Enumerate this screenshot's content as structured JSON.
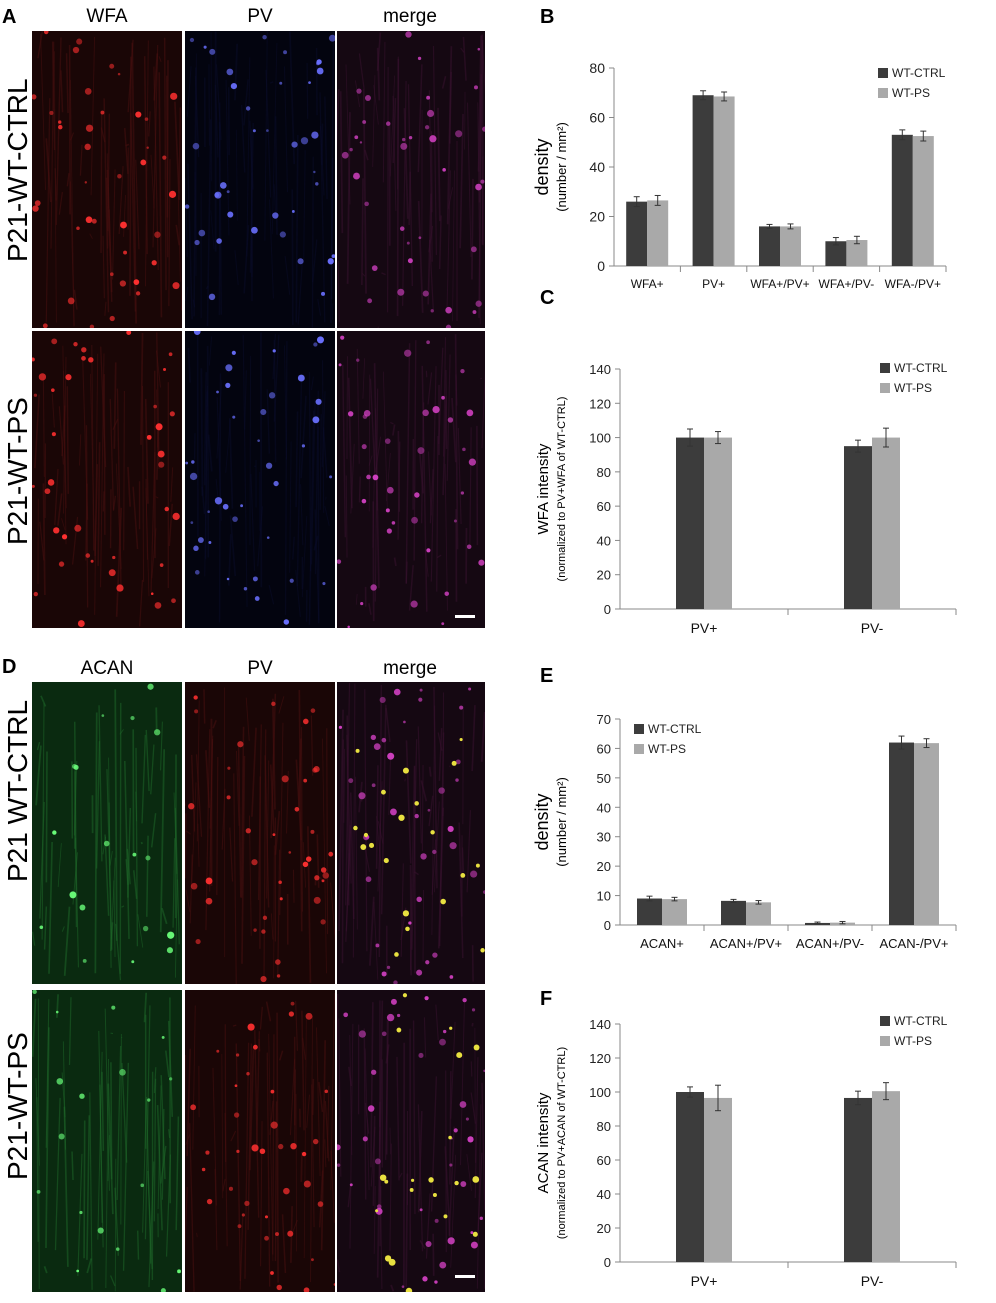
{
  "panels": {
    "A": {
      "letter": "A",
      "columns": [
        "WFA",
        "PV",
        "merge"
      ],
      "rows": [
        "P21-WT-CTRL",
        "P21-WT-PS"
      ],
      "stains": [
        "red",
        "blue",
        "merge"
      ]
    },
    "D": {
      "letter": "D",
      "columns": [
        "ACAN",
        "PV",
        "merge"
      ],
      "rows": [
        "P21 WT-CTRL",
        "P21-WT-PS"
      ],
      "stains": [
        "green",
        "red",
        "merge"
      ]
    }
  },
  "colors": {
    "ctrl": "#3c3c3c",
    "ps": "#a9a9a9",
    "axis": "#888888"
  },
  "chart_data": [
    {
      "panel": "B",
      "type": "bar",
      "categories": [
        "WFA+",
        "PV+",
        "WFA+/PV+",
        "WFA+/PV-",
        "WFA-/PV+"
      ],
      "series": [
        {
          "name": "WT-CTRL",
          "values": [
            26,
            69,
            16,
            10,
            53
          ],
          "errors": [
            2,
            1.8,
            0.8,
            1.5,
            2
          ]
        },
        {
          "name": "WT-PS",
          "values": [
            26.5,
            68.5,
            16,
            10.5,
            52.5
          ],
          "errors": [
            2,
            1.8,
            1,
            1.5,
            2
          ]
        }
      ],
      "ylabel_main": "density",
      "ylabel_sub": "(number / mm²)",
      "ylim": [
        0,
        80
      ],
      "yticks": [
        0,
        20,
        40,
        60,
        80
      ],
      "legend": "top-right",
      "grid": false
    },
    {
      "panel": "C",
      "type": "bar",
      "categories": [
        "PV+",
        "PV-"
      ],
      "series": [
        {
          "name": "WT-CTRL",
          "values": [
            100,
            95
          ],
          "errors": [
            5,
            3.5
          ]
        },
        {
          "name": "WT-PS",
          "values": [
            100,
            100
          ],
          "errors": [
            3.5,
            5.5
          ]
        }
      ],
      "ylabel_main": "WFA intensity",
      "ylabel_sub": "(normalized to PV+WFA of WT-CTRL)",
      "ylim": [
        0,
        140
      ],
      "yticks": [
        0,
        20,
        40,
        60,
        80,
        100,
        120,
        140
      ],
      "legend": "top-right",
      "grid": false
    },
    {
      "panel": "E",
      "type": "bar",
      "categories": [
        "ACAN+",
        "ACAN+/PV+",
        "ACAN+/PV-",
        "ACAN-/PV+"
      ],
      "series": [
        {
          "name": "WT-CTRL",
          "values": [
            9,
            8.2,
            0.7,
            62
          ],
          "errors": [
            0.8,
            0.5,
            0.3,
            2.2
          ]
        },
        {
          "name": "WT-PS",
          "values": [
            8.8,
            7.7,
            0.8,
            61.8
          ],
          "errors": [
            0.6,
            0.6,
            0.4,
            1.5
          ]
        }
      ],
      "ylabel_main": "density",
      "ylabel_sub": "(number / mm²)",
      "ylim": [
        0,
        70
      ],
      "yticks": [
        0,
        10,
        20,
        30,
        40,
        50,
        60,
        70
      ],
      "legend": "top-left",
      "grid": false
    },
    {
      "panel": "F",
      "type": "bar",
      "categories": [
        "PV+",
        "PV-"
      ],
      "series": [
        {
          "name": "WT-CTRL",
          "values": [
            100,
            96.5
          ],
          "errors": [
            3,
            4
          ]
        },
        {
          "name": "WT-PS",
          "values": [
            96.5,
            100.5
          ],
          "errors": [
            7.5,
            5
          ]
        }
      ],
      "ylabel_main": "ACAN intensity",
      "ylabel_sub": "(normalized to PV+ACAN of WT-CTRL)",
      "ylim": [
        0,
        140
      ],
      "yticks": [
        0,
        20,
        40,
        60,
        80,
        100,
        120,
        140
      ],
      "legend": "top-right",
      "grid": false
    }
  ]
}
